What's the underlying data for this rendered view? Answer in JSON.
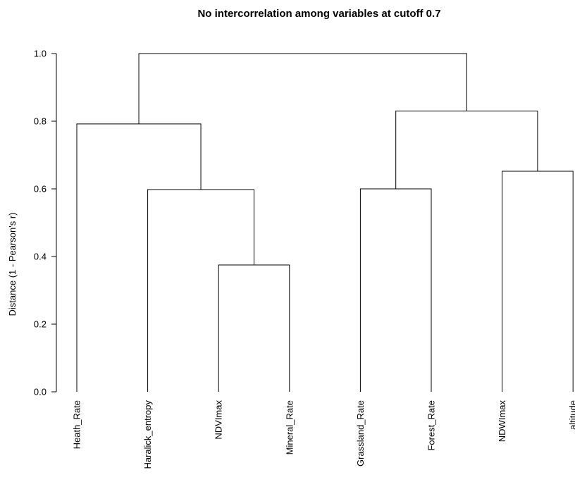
{
  "chart_data": {
    "type": "dendrogram",
    "title": "No intercorrelation among variables at cutoff 0.7",
    "ylabel": "Distance (1 - Pearson's r)",
    "xlabel": "",
    "ylim": [
      0,
      1
    ],
    "yticks": [
      "0.0",
      "0.2",
      "0.4",
      "0.6",
      "0.8",
      "1.0"
    ],
    "grid": false,
    "leaves": [
      "Heath_Rate",
      "Haralick_entropy",
      "NDVImax",
      "Mineral_Rate",
      "Grassland_Rate",
      "Forest_Rate",
      "NDWImax",
      "altitude"
    ],
    "merges": [
      {
        "id": "m1",
        "left": "NDVImax",
        "right": "Mineral_Rate",
        "height": 0.375
      },
      {
        "id": "m2",
        "left": "Grassland_Rate",
        "right": "Forest_Rate",
        "height": 0.6
      },
      {
        "id": "m3",
        "left": "Haralick_entropy",
        "right": "m1",
        "height": 0.598
      },
      {
        "id": "m4",
        "left": "NDWImax",
        "right": "altitude",
        "height": 0.652
      },
      {
        "id": "m5",
        "left": "Heath_Rate",
        "right": "m3",
        "height": 0.792
      },
      {
        "id": "m6",
        "left": "m2",
        "right": "m4",
        "height": 0.83
      },
      {
        "id": "m7",
        "left": "m5",
        "right": "m6",
        "height": 1.0
      }
    ]
  }
}
